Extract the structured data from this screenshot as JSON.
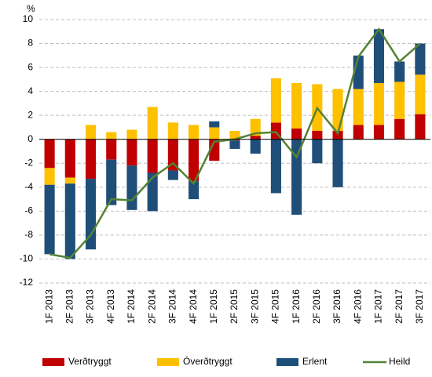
{
  "chart_data": {
    "type": "stacked-bar-line",
    "y_unit": "%",
    "categories": [
      "1F 2013",
      "2F 2013",
      "3F 2013",
      "4F 2013",
      "1F 2014",
      "2F 2014",
      "3F 2014",
      "4F 2014",
      "1F 2015",
      "2F 2015",
      "3F 2015",
      "4F 2015",
      "1F 2016",
      "2F 2016",
      "3F 2016",
      "4F 2016",
      "1F 2017",
      "2F 2017",
      "3F 2017"
    ],
    "series": [
      {
        "name": "Verðtryggt",
        "color": "#c00000",
        "values": [
          -2.4,
          -3.2,
          -3.3,
          -1.7,
          -2.2,
          -2.8,
          -2.6,
          -3.5,
          -1.8,
          -0.1,
          0.3,
          1.4,
          0.9,
          0.7,
          0.7,
          1.2,
          1.2,
          1.7,
          2.1
        ]
      },
      {
        "name": "Óverðtryggt",
        "color": "#ffc000",
        "values": [
          -1.4,
          -0.5,
          1.2,
          0.6,
          0.8,
          2.7,
          1.4,
          1.2,
          1.0,
          0.7,
          1.4,
          3.7,
          3.8,
          3.9,
          3.5,
          3.0,
          3.5,
          3.1,
          3.3
        ]
      },
      {
        "name": "Erlent",
        "color": "#1f4e79",
        "values": [
          -5.8,
          -6.3,
          -5.9,
          -3.8,
          -3.7,
          -3.2,
          -0.8,
          -1.5,
          0.5,
          -0.7,
          -1.2,
          -4.5,
          -6.3,
          -2.0,
          -4.0,
          2.8,
          4.5,
          1.7,
          2.6
        ]
      },
      {
        "name": "Heild",
        "color": "#548235",
        "type": "line",
        "values": [
          -9.6,
          -9.9,
          -8.0,
          -5.0,
          -5.1,
          -3.2,
          -2.0,
          -3.7,
          -0.2,
          0.0,
          0.5,
          0.6,
          -1.5,
          2.6,
          0.5,
          6.9,
          9.2,
          6.5,
          8.0
        ]
      }
    ],
    "ylim": [
      -12,
      10
    ],
    "yticks": [
      -12,
      -10,
      -8,
      -6,
      -4,
      -2,
      0,
      2,
      4,
      6,
      8,
      10
    ],
    "grid": true
  }
}
